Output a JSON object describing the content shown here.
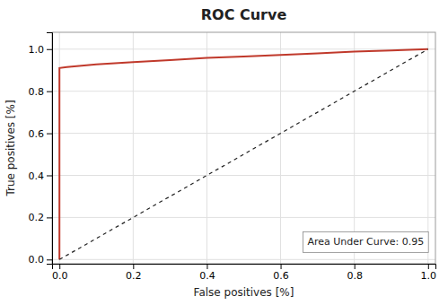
{
  "chart_data": {
    "type": "line",
    "title": "ROC Curve",
    "x_label": "False positives [%]",
    "y_label": "True positives [%]",
    "annotation": "Area Under Curve: 0.95",
    "series": [
      {
        "x": [
          0.0,
          0.0,
          0.02,
          0.1,
          0.2,
          0.3,
          0.4,
          0.5,
          0.6,
          0.7,
          0.8,
          0.9,
          1.0
        ],
        "values": [
          0.0,
          0.91,
          0.915,
          0.928,
          0.938,
          0.948,
          0.958,
          0.965,
          0.972,
          0.98,
          0.988,
          0.994,
          1.0
        ],
        "color": "#c0392b",
        "line_style": "solid"
      },
      {
        "x": [
          0,
          1
        ],
        "values": [
          0,
          1
        ],
        "color": "#222222",
        "line_style": "dashed"
      }
    ],
    "xlim": [
      -0.02,
      1.02
    ],
    "ylim": [
      -0.02,
      1.08
    ],
    "xticks": [
      {
        "value": 0,
        "label": "0.0"
      },
      0.2,
      0.4,
      0.6,
      0.8,
      {
        "value": 1,
        "label": "1.0"
      }
    ],
    "yticks": [
      {
        "value": 0,
        "label": "0.0"
      },
      0.2,
      0.4,
      0.6,
      0.8,
      {
        "value": 1,
        "label": "1.0"
      }
    ],
    "grid": true
  }
}
